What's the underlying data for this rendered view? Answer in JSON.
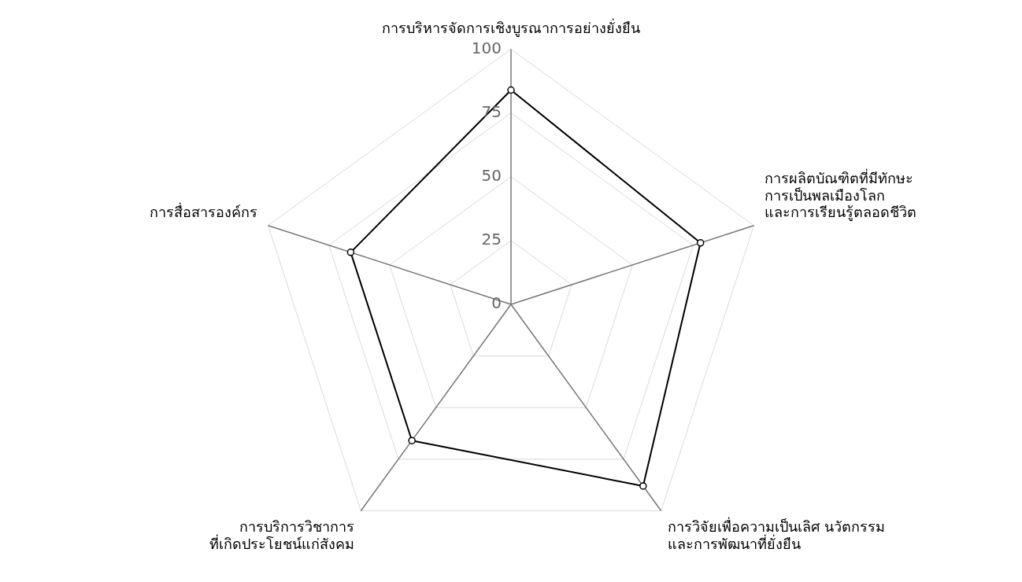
{
  "chart_data": {
    "type": "radar",
    "categories": [
      "การบริหารจัดการเชิงบูรณาการอย่างยั่งยืน",
      "การผลิตบัณฑิตที่มีทักษะ\nการเป็นพลเมืองโลก\nและการเรียนรู้ตลอดชีวิต",
      "การวิจัยเพื่อความเป็นเลิศ นวัตกรรม\nและการพัฒนาที่ยั่งยืน",
      "การบริการวิชาการ\nที่เกิดประโยชน์แก่สังคม",
      "การสื่อสารองค์กร"
    ],
    "series": [
      {
        "color": "#000000",
        "values": [
          84,
          78,
          88,
          66,
          66
        ]
      }
    ],
    "ylim": [
      0,
      100
    ],
    "yticks": [
      0,
      25,
      50,
      75,
      100
    ],
    "grid": true,
    "legend": false,
    "marker": "circle",
    "line_style": "solid"
  }
}
